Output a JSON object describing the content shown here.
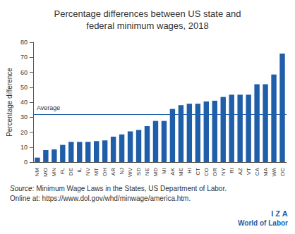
{
  "chart_data": {
    "type": "bar",
    "title": "Percentage differences between US state and\nfederal minimum wages, 2018",
    "y_label": "Percentage difference",
    "categories": [
      "NM",
      "MO",
      "MN",
      "FL",
      "DE",
      "IL",
      "NV",
      "MT",
      "OH",
      "AR",
      "NJ",
      "WV",
      "SD",
      "NE",
      "MD",
      "MI",
      "AK",
      "ME",
      "HI",
      "CT",
      "CO",
      "OR",
      "NY",
      "RI",
      "AZ",
      "VT",
      "CA",
      "MA",
      "WA",
      "DC"
    ],
    "values": [
      3,
      8,
      8.5,
      11.5,
      13.5,
      13.5,
      13.5,
      14,
      14.5,
      17,
      18.5,
      20.5,
      21.5,
      24,
      27.5,
      27.5,
      35.5,
      38,
      39,
      39,
      40.5,
      41,
      43.5,
      45,
      45,
      45,
      52,
      52,
      58.5,
      72.5
    ],
    "color": "#1f5ea8",
    "ylim": [
      0,
      80
    ],
    "yticks": [
      0,
      10,
      20,
      30,
      40,
      50,
      60,
      70,
      80
    ],
    "grid": false,
    "reference_line": {
      "label": "Average",
      "value": 32
    },
    "source": [
      "Source: Minimum Wage Laws in the States, US Department of Labor.",
      "Online at: https://www.dol.gov/whd/minwage/america.htm."
    ],
    "logo": [
      "I Z A",
      "World of Labor"
    ]
  }
}
